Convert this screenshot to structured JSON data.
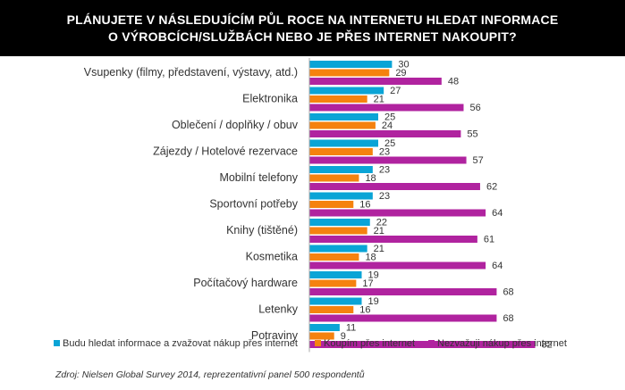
{
  "title": "PLÁNUJETE V NÁSLEDUJÍCÍM PŮL ROCE NA INTERNETU HLEDAT INFORMACE O VÝROBCÍCH/SLUŽBÁCH NEBO JE PŘES INTERNET NAKOUPIT?",
  "source": "Zdroj: Nielsen Global Survey 2014, reprezentativní panel 500 respondentů",
  "colors": {
    "title_bg": "#000000",
    "axis": "#aaaaaa"
  },
  "chart_data": {
    "type": "bar",
    "orientation": "horizontal",
    "title": "PLÁNUJETE V NÁSLEDUJÍCÍM PŮL ROCE NA INTERNETU HLEDAT INFORMACE O VÝROBCÍCH/SLUŽBÁCH NEBO JE PŘES INTERNET NAKOUPIT?",
    "categories": [
      "Vsupenky (filmy, představení, výstavy, atd.)",
      "Elektronika",
      "Oblečení / doplňky / obuv",
      "Zájezdy / Hotelové rezervace",
      "Mobilní telefony",
      "Sportovní potřeby",
      "Knihy (tištěné)",
      "Kosmetika",
      "Počítačový hardware",
      "Letenky",
      "Potraviny"
    ],
    "series": [
      {
        "name": "Budu hledat informace a zvažovat nákup přes internet",
        "color": "#0aa4d6",
        "values": [
          30,
          27,
          25,
          25,
          23,
          23,
          22,
          21,
          19,
          19,
          11
        ]
      },
      {
        "name": "Koupím přes internet",
        "color": "#f5820f",
        "values": [
          29,
          21,
          24,
          23,
          18,
          16,
          21,
          18,
          17,
          16,
          9
        ]
      },
      {
        "name": "Nezvažuji nákup přes internet",
        "color": "#b0239f",
        "values": [
          48,
          56,
          55,
          57,
          62,
          64,
          61,
          64,
          68,
          68,
          82
        ]
      }
    ],
    "xlim": [
      0,
      90
    ],
    "legend": "bottom"
  }
}
